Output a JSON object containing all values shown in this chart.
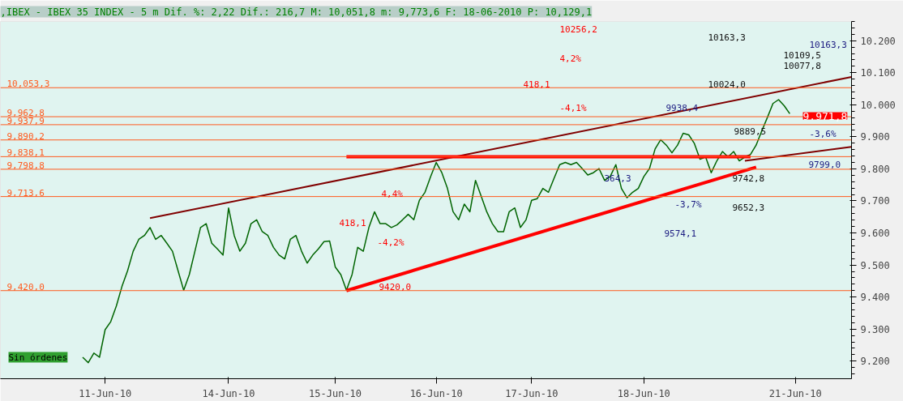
{
  "chart_data": {
    "type": "line",
    "title": ",IBEX - IBEX 35 INDEX - 5 m Dif. %: 2,22 Dif.: 216,7 M: 10,051,8 m: 9,773,6 F: 18-06-2010 P: 10,129,1",
    "categories": [
      null,
      null,
      null,
      null,
      "11-Jun-10",
      null,
      null,
      null,
      null,
      null,
      null,
      null,
      null,
      null,
      null,
      null,
      null,
      null,
      null,
      null,
      null,
      null,
      null,
      null,
      null,
      null,
      "14-Jun-10",
      null,
      null,
      null,
      null,
      null,
      null,
      null,
      null,
      null,
      null,
      null,
      null,
      null,
      null,
      null,
      null,
      null,
      null,
      "15-Jun-10",
      null,
      null,
      null,
      null,
      null,
      null,
      null,
      null,
      null,
      null,
      null,
      null,
      null,
      null,
      null,
      null,
      null,
      "16-Jun-10",
      null,
      null,
      null,
      null,
      null,
      null,
      null,
      null,
      null,
      null,
      null,
      null,
      null,
      null,
      null,
      null,
      "17-Jun-10",
      null,
      null,
      null,
      null,
      null,
      null,
      null,
      null,
      null,
      null,
      null,
      null,
      null,
      null,
      null,
      null,
      null,
      null,
      null,
      "18-Jun-10",
      null,
      null,
      null,
      null,
      null,
      null,
      null,
      null,
      null,
      null,
      null,
      null,
      null,
      null,
      null,
      null,
      null,
      null,
      null,
      null,
      null,
      null,
      null,
      null,
      null,
      null,
      "21-Jun-10",
      null,
      null,
      null,
      null,
      null,
      null,
      null,
      null,
      null,
      null
    ],
    "ylim": [
      9145,
      10260
    ],
    "yticks": [
      {
        "value": 9200,
        "label": "9.200"
      },
      {
        "value": 9300,
        "label": "9.300"
      },
      {
        "value": 9400,
        "label": "9.400"
      },
      {
        "value": 9500,
        "label": "9.500"
      },
      {
        "value": 9600,
        "label": "9.600"
      },
      {
        "value": 9700,
        "label": "9.700"
      },
      {
        "value": 9800,
        "label": "9.800"
      },
      {
        "value": 9900,
        "label": "9.900"
      },
      {
        "value": 10000,
        "label": "10.000"
      },
      {
        "value": 10100,
        "label": "10.100"
      },
      {
        "value": 10200,
        "label": "10.200"
      }
    ],
    "grid": false,
    "marker": "none",
    "line_style": "solid",
    "series": [
      {
        "color": "#006400",
        "values": [
          9212,
          9195,
          9225,
          9212,
          9298,
          9323,
          9372,
          9433,
          9482,
          9543,
          9580,
          9592,
          9617,
          9580,
          9592,
          9568,
          9543,
          9482,
          9421,
          9470,
          9543,
          9617,
          9629,
          9568,
          9550,
          9531,
          9678,
          9592,
          9543,
          9568,
          9629,
          9641,
          9604,
          9592,
          9555,
          9531,
          9519,
          9580,
          9592,
          9543,
          9506,
          9531,
          9550,
          9573,
          9575,
          9494,
          9470,
          9421,
          9470,
          9555,
          9543,
          9617,
          9666,
          9629,
          9629,
          9617,
          9625,
          9641,
          9658,
          9641,
          9702,
          9727,
          9776,
          9820,
          9788,
          9739,
          9666,
          9641,
          9690,
          9666,
          9764,
          9715,
          9666,
          9629,
          9604,
          9604,
          9666,
          9678,
          9617,
          9641,
          9702,
          9707,
          9739,
          9727,
          9771,
          9813,
          9820,
          9813,
          9820,
          9801,
          9781,
          9788,
          9801,
          9764,
          9776,
          9813,
          9739,
          9710,
          9727,
          9739,
          9776,
          9801,
          9862,
          9891,
          9874,
          9850,
          9874,
          9911,
          9906,
          9879,
          9830,
          9837,
          9788,
          9825,
          9854,
          9837,
          9854,
          9825,
          9837,
          9845,
          9874,
          9918,
          9960,
          10004,
          10016,
          9997,
          9972,
          null,
          null,
          null,
          null,
          null,
          null,
          null,
          null,
          null,
          null,
          null
        ]
      },
      {
        "color": "#800000",
        "values": [
          null,
          null,
          null,
          null,
          null,
          null,
          null,
          null,
          null,
          null,
          null,
          null,
          9646,
          null,
          null,
          null,
          null,
          null,
          null,
          null,
          null,
          null,
          null,
          null,
          null,
          null,
          null,
          null,
          null,
          null,
          null,
          null,
          null,
          null,
          null,
          null,
          null,
          null,
          null,
          null,
          null,
          null,
          null,
          null,
          null,
          null,
          null,
          null,
          null,
          null,
          null,
          null,
          null,
          null,
          null,
          null,
          null,
          null,
          null,
          null,
          null,
          null,
          null,
          null,
          null,
          null,
          null,
          null,
          null,
          null,
          null,
          null,
          null,
          null,
          null,
          null,
          null,
          null,
          null,
          null,
          null,
          null,
          null,
          null,
          null,
          null,
          null,
          null,
          null,
          null,
          null,
          null,
          null,
          null,
          null,
          null,
          null,
          null,
          null,
          null,
          null,
          null,
          null,
          null,
          null,
          null,
          null,
          null,
          null,
          null,
          null,
          null,
          null,
          null,
          null,
          null,
          null,
          null,
          null,
          null,
          null,
          null,
          null,
          null,
          null,
          null,
          null,
          null,
          null,
          null,
          null,
          null,
          null,
          null,
          null,
          null,
          null,
          10087
        ]
      },
      {
        "color": "#800000",
        "values": [
          null,
          null,
          null,
          null,
          null,
          null,
          null,
          null,
          null,
          null,
          null,
          null,
          null,
          null,
          null,
          null,
          null,
          null,
          null,
          null,
          null,
          null,
          null,
          null,
          null,
          null,
          null,
          null,
          null,
          null,
          null,
          null,
          null,
          null,
          null,
          null,
          null,
          null,
          null,
          null,
          null,
          null,
          null,
          null,
          null,
          null,
          null,
          null,
          null,
          null,
          null,
          null,
          null,
          null,
          null,
          null,
          null,
          null,
          null,
          null,
          null,
          null,
          null,
          null,
          null,
          null,
          null,
          null,
          null,
          null,
          null,
          null,
          null,
          null,
          null,
          null,
          null,
          null,
          null,
          null,
          null,
          null,
          null,
          null,
          null,
          null,
          null,
          null,
          null,
          null,
          null,
          null,
          null,
          null,
          null,
          null,
          null,
          null,
          null,
          null,
          null,
          null,
          null,
          null,
          null,
          null,
          null,
          null,
          null,
          null,
          null,
          null,
          null,
          null,
          null,
          null,
          null,
          null,
          9825,
          null,
          null,
          null,
          null,
          null,
          null,
          null,
          null,
          null,
          null,
          null,
          null,
          null,
          null,
          null,
          null,
          null,
          null,
          9869
        ]
      },
      {
        "color": "#ff0000",
        "values": [
          null,
          null,
          null,
          null,
          null,
          null,
          null,
          null,
          null,
          null,
          null,
          null,
          null,
          null,
          null,
          null,
          null,
          null,
          null,
          null,
          null,
          null,
          null,
          null,
          null,
          null,
          null,
          null,
          null,
          null,
          null,
          null,
          null,
          null,
          null,
          null,
          null,
          null,
          null,
          null,
          null,
          null,
          null,
          null,
          null,
          null,
          null,
          9420,
          null,
          null,
          null,
          null,
          null,
          null,
          null,
          null,
          null,
          null,
          null,
          null,
          null,
          null,
          null,
          null,
          null,
          null,
          null,
          null,
          null,
          null,
          null,
          null,
          null,
          null,
          null,
          null,
          null,
          null,
          null,
          null,
          null,
          null,
          null,
          null,
          null,
          null,
          null,
          null,
          null,
          null,
          null,
          null,
          null,
          null,
          null,
          null,
          null,
          null,
          null,
          null,
          null,
          null,
          null,
          null,
          null,
          null,
          null,
          null,
          null,
          null,
          null,
          null,
          null,
          null,
          null,
          null,
          null,
          null,
          null,
          null,
          9805,
          null,
          null,
          null,
          null,
          null,
          null,
          null,
          null,
          null,
          null,
          null,
          null,
          null,
          null,
          null,
          null,
          null
        ]
      },
      {
        "color": "#ff0000",
        "values": [
          null,
          null,
          null,
          null,
          null,
          null,
          null,
          null,
          null,
          null,
          null,
          null,
          null,
          null,
          null,
          null,
          null,
          null,
          null,
          null,
          null,
          null,
          null,
          null,
          null,
          null,
          null,
          null,
          null,
          null,
          null,
          null,
          null,
          null,
          null,
          null,
          null,
          null,
          null,
          null,
          null,
          null,
          null,
          null,
          null,
          null,
          null,
          9838,
          null,
          null,
          null,
          null,
          null,
          null,
          null,
          null,
          null,
          null,
          null,
          null,
          null,
          null,
          null,
          null,
          null,
          null,
          null,
          null,
          null,
          null,
          null,
          null,
          null,
          null,
          null,
          null,
          null,
          null,
          null,
          null,
          null,
          null,
          null,
          null,
          null,
          null,
          null,
          null,
          null,
          null,
          null,
          null,
          null,
          null,
          null,
          null,
          null,
          null,
          null,
          null,
          null,
          null,
          null,
          null,
          null,
          null,
          null,
          null,
          null,
          null,
          null,
          null,
          null,
          null,
          null,
          null,
          null,
          null,
          null,
          9838,
          null,
          null,
          null,
          null,
          null,
          null,
          null,
          null,
          null,
          null,
          null,
          null,
          null,
          null,
          null,
          null,
          null,
          null
        ]
      }
    ],
    "ref_lines": [
      {
        "axis": "y",
        "value": 10053.3,
        "label": "10,053,3",
        "color": "#ff5a1e"
      },
      {
        "axis": "y",
        "value": 9962.8,
        "label": "9,962,8",
        "color": "#ff5a1e"
      },
      {
        "axis": "y",
        "value": 9937.9,
        "label": "9,937,9",
        "color": "#ff5a1e"
      },
      {
        "axis": "y",
        "value": 9890.2,
        "label": "9,890,2",
        "color": "#ff5a1e"
      },
      {
        "axis": "y",
        "value": 9838.1,
        "label": "9,838,1",
        "color": "#ff5a1e"
      },
      {
        "axis": "y",
        "value": 9798.8,
        "label": "9,798,8",
        "color": "#ff5a1e"
      },
      {
        "axis": "y",
        "value": 9713.6,
        "label": "9,713,6",
        "color": "#ff5a1e"
      },
      {
        "axis": "y",
        "value": 9420.0,
        "label": "9,420,0",
        "color": "#ff5a1e"
      }
    ],
    "annotations": [
      "10256,2",
      "4,2%",
      "418,1",
      "-4,1%",
      "4,4%",
      "418,1",
      "-4,2%",
      "9420,0",
      "9938,4",
      "10163,3",
      "10024,0",
      "10163,3",
      "10109,5",
      "10077,8",
      "9889,5",
      "9742,8",
      "9652,3",
      "9574,1",
      "9799,0",
      "-3,6%",
      "-3,7%",
      "364,3",
      "9.971,8",
      "Sin órdenes"
    ]
  }
}
